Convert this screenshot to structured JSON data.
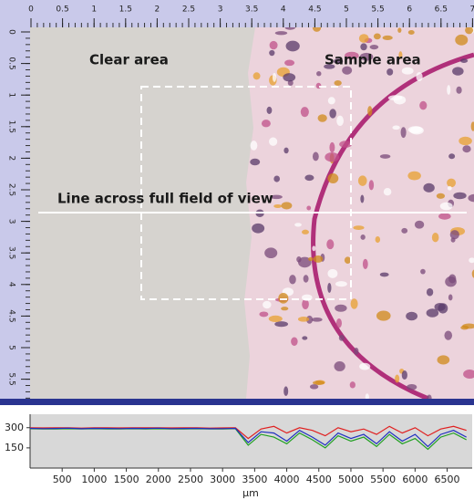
{
  "ruler": {
    "top_ticks": [
      0,
      0.5,
      1,
      1.5,
      2,
      2.5,
      3,
      3.5,
      4,
      4.5,
      5,
      5.5,
      6,
      6.5,
      7
    ],
    "left_ticks": [
      0,
      0.5,
      1,
      1.5,
      2,
      2.5,
      3,
      3.5,
      4,
      4.5,
      5,
      5.5
    ]
  },
  "annotations": {
    "clear": "Clear area",
    "sample": "Sample area",
    "line": "Line across full field of view"
  },
  "chart_data": {
    "type": "line",
    "xlabel": "μm",
    "x": [
      0,
      200,
      400,
      600,
      800,
      1000,
      1200,
      1400,
      1600,
      1800,
      2000,
      2200,
      2400,
      2600,
      2800,
      3000,
      3200,
      3400,
      3600,
      3800,
      4000,
      4200,
      4400,
      4600,
      4800,
      5000,
      5200,
      5400,
      5600,
      5800,
      6000,
      6200,
      6400,
      6600,
      6800
    ],
    "series": [
      {
        "color": "#e02020",
        "values": [
          300,
          298,
          299,
          300,
          297,
          300,
          299,
          298,
          300,
          299,
          300,
          298,
          299,
          300,
          297,
          298,
          300,
          220,
          290,
          310,
          260,
          300,
          280,
          240,
          300,
          270,
          290,
          250,
          310,
          260,
          300,
          240,
          290,
          310,
          280
        ]
      },
      {
        "color": "#20a020",
        "values": [
          292,
          290,
          291,
          292,
          290,
          292,
          291,
          290,
          292,
          291,
          292,
          290,
          291,
          292,
          290,
          291,
          292,
          170,
          250,
          230,
          180,
          260,
          210,
          150,
          240,
          200,
          230,
          160,
          250,
          180,
          220,
          140,
          230,
          260,
          210
        ]
      },
      {
        "color": "#2030c0",
        "values": [
          295,
          293,
          294,
          296,
          292,
          295,
          294,
          293,
          295,
          294,
          296,
          293,
          294,
          295,
          292,
          293,
          295,
          190,
          270,
          260,
          200,
          280,
          230,
          170,
          260,
          220,
          250,
          180,
          270,
          200,
          250,
          160,
          250,
          280,
          230
        ]
      }
    ],
    "xlim": [
      0,
      6890
    ],
    "ylim": [
      0,
      400
    ],
    "xticks": [
      500,
      1000,
      1500,
      2000,
      2500,
      3000,
      3500,
      4000,
      4500,
      5000,
      5500,
      6000,
      6500
    ],
    "yticks": [
      150,
      300
    ]
  }
}
